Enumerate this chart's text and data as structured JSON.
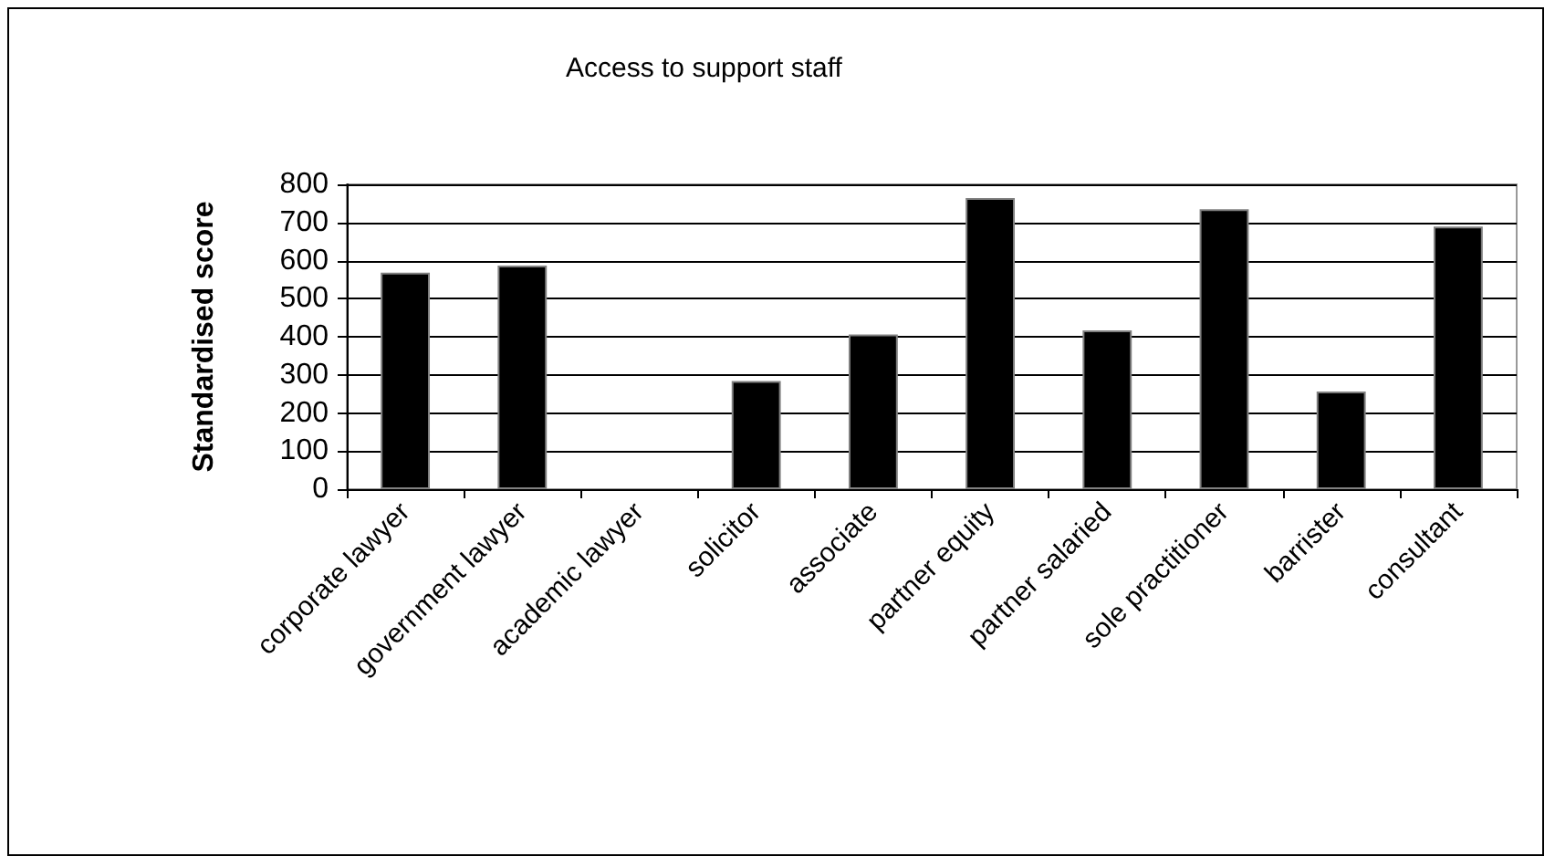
{
  "chart_data": {
    "type": "bar",
    "title": "Access to support staff",
    "ylabel": "Standardised score",
    "categories": [
      "corporate lawyer",
      "government lawyer",
      "academic lawyer",
      "solicitor",
      "associate",
      "partner equity",
      "partner salaried",
      "sole practitioner",
      "barrister",
      "consultant"
    ],
    "values": [
      568,
      587,
      0,
      284,
      406,
      764,
      417,
      735,
      256,
      689
    ],
    "color": "#000000",
    "ylim": [
      0,
      800
    ],
    "yticks": [
      0,
      100,
      200,
      300,
      400,
      500,
      600,
      700,
      800
    ],
    "grid": "y"
  }
}
